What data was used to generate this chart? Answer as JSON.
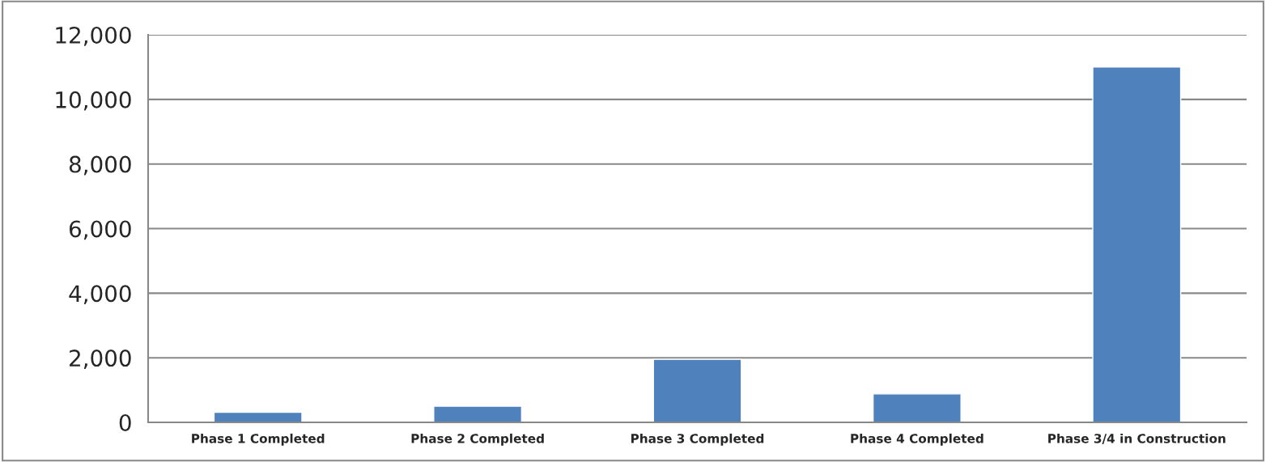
{
  "chart_data": {
    "type": "bar",
    "categories": [
      "Phase 1 Completed",
      "Phase 2 Completed",
      "Phase 3 Completed",
      "Phase 4 Completed",
      "Phase 3/4 in Construction"
    ],
    "values": [
      310,
      500,
      1950,
      880,
      11000
    ],
    "color": "#4f81bd",
    "ylim": [
      0,
      12000
    ],
    "yticks": [
      {
        "value": 0,
        "label": "0"
      },
      {
        "value": 2000,
        "label": "2,000"
      },
      {
        "value": 4000,
        "label": "4,000"
      },
      {
        "value": 6000,
        "label": "6,000"
      },
      {
        "value": 8000,
        "label": "8,000"
      },
      {
        "value": 10000,
        "label": "10,000"
      },
      {
        "value": 12000,
        "label": "12,000"
      }
    ],
    "grid": "y",
    "legend": false
  }
}
